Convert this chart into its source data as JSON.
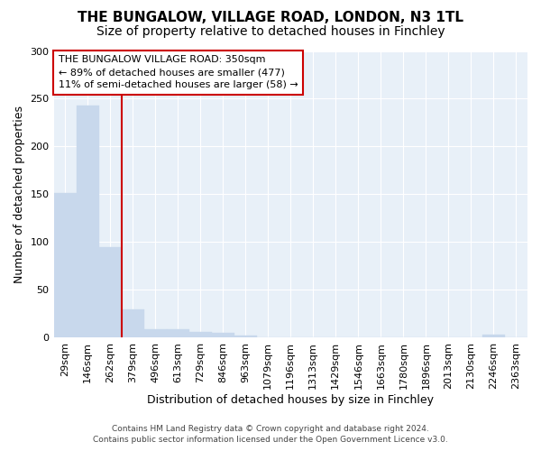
{
  "title": "THE BUNGALOW, VILLAGE ROAD, LONDON, N3 1TL",
  "subtitle": "Size of property relative to detached houses in Finchley",
  "xlabel": "Distribution of detached houses by size in Finchley",
  "ylabel": "Number of detached properties",
  "categories": [
    "29sqm",
    "146sqm",
    "262sqm",
    "379sqm",
    "496sqm",
    "613sqm",
    "729sqm",
    "846sqm",
    "963sqm",
    "1079sqm",
    "1196sqm",
    "1313sqm",
    "1429sqm",
    "1546sqm",
    "1663sqm",
    "1780sqm",
    "1896sqm",
    "2013sqm",
    "2130sqm",
    "2246sqm",
    "2363sqm"
  ],
  "values": [
    151,
    243,
    95,
    30,
    9,
    9,
    6,
    5,
    2,
    0,
    0,
    0,
    0,
    0,
    0,
    0,
    0,
    0,
    0,
    3,
    0
  ],
  "bar_color": "#c8d8ec",
  "bar_edge_color": "#c8d8ec",
  "red_line_x": 2.5,
  "red_line_color": "#cc0000",
  "annotation_line1": "THE BUNGALOW VILLAGE ROAD: 350sqm",
  "annotation_line2": "← 89% of detached houses are smaller (477)",
  "annotation_line3": "11% of semi-detached houses are larger (58) →",
  "annotation_box_color": "#ffffff",
  "annotation_box_edge": "#cc0000",
  "ylim": [
    0,
    300
  ],
  "yticks": [
    0,
    50,
    100,
    150,
    200,
    250,
    300
  ],
  "plot_bg_color": "#e8f0f8",
  "fig_bg_color": "#ffffff",
  "grid_color": "#ffffff",
  "footer_line1": "Contains HM Land Registry data © Crown copyright and database right 2024.",
  "footer_line2": "Contains public sector information licensed under the Open Government Licence v3.0.",
  "title_fontsize": 11,
  "subtitle_fontsize": 10,
  "tick_fontsize": 8,
  "ylabel_fontsize": 9,
  "xlabel_fontsize": 9,
  "annotation_fontsize": 8,
  "footer_fontsize": 6.5
}
